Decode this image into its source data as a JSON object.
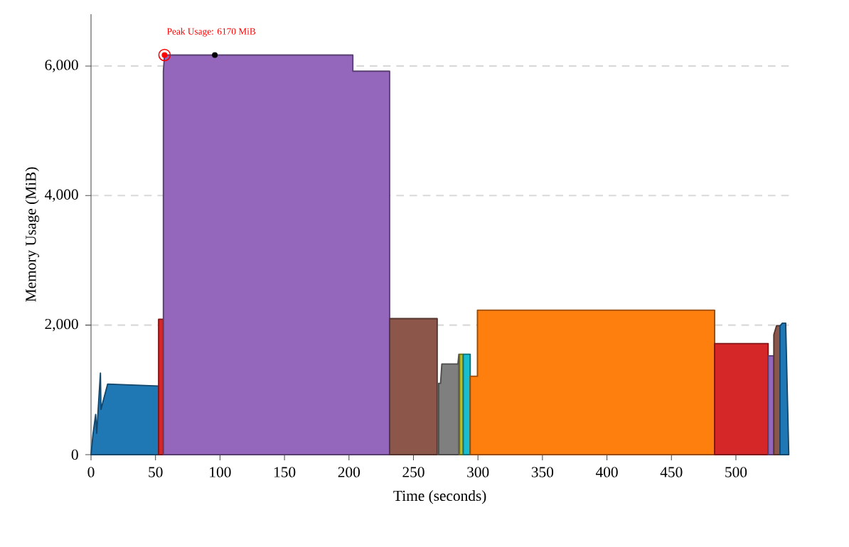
{
  "chart_data": {
    "type": "area",
    "xlabel": "Time (seconds)",
    "ylabel": "Memory Usage (MiB)",
    "xlim": [
      0,
      541
    ],
    "ylim": [
      0,
      6800
    ],
    "xticks": [
      0,
      50,
      100,
      150,
      200,
      250,
      300,
      350,
      400,
      450,
      500
    ],
    "yticks": [
      0,
      {
        "value": 2000,
        "label": "2,000"
      },
      {
        "value": 4000,
        "label": "4,000"
      },
      {
        "value": 6000,
        "label": "6,000"
      }
    ],
    "grid": "y",
    "annotations": [
      {
        "text": "Peak Usage: 6170 MiB",
        "x": 57,
        "y": 6170
      }
    ],
    "series": [
      {
        "color": "#1f77b4",
        "x": [
          0,
          1.5,
          3.6,
          4.4,
          7.3,
          7.7,
          12.9,
          52.4,
          52.4
        ],
        "values": [
          0,
          310,
          620,
          330,
          1260,
          700,
          1090,
          1060,
          0
        ]
      },
      {
        "color": "#d62728",
        "x": [
          52.4,
          52.4,
          56.1,
          56.1
        ],
        "values": [
          0,
          2090,
          2090,
          0
        ]
      },
      {
        "color": "#9467bd",
        "x": [
          56.1,
          56.1,
          57,
          203,
          203,
          231.5,
          231.5
        ],
        "values": [
          0,
          5920,
          6170,
          6170,
          5920,
          5920,
          0
        ]
      },
      {
        "color": "#8c564b",
        "x": [
          231.5,
          231.5,
          268.4,
          268.4
        ],
        "values": [
          0,
          2100,
          2100,
          0
        ]
      },
      {
        "color": "#7f7f7f",
        "x": [
          269.5,
          269.5,
          271,
          272,
          284.5,
          285.2,
          285.2
        ],
        "values": [
          0,
          1100,
          1100,
          1400,
          1400,
          1550,
          0
        ]
      },
      {
        "color": "#bcbd22",
        "x": [
          285.7,
          285.7,
          288.6,
          288.6
        ],
        "values": [
          0,
          1550,
          1550,
          0
        ]
      },
      {
        "color": "#17becf",
        "x": [
          288.6,
          288.6,
          294,
          294
        ],
        "values": [
          0,
          1550,
          1550,
          0
        ]
      },
      {
        "color": "#ff7f0e",
        "x": [
          294,
          294,
          299.6,
          299.6,
          483.5,
          483.5
        ],
        "values": [
          0,
          1210,
          1210,
          2230,
          2230,
          0
        ]
      },
      {
        "color": "#d62728",
        "x": [
          483.5,
          483.5,
          525,
          525
        ],
        "values": [
          0,
          1715,
          1715,
          0
        ]
      },
      {
        "color": "#9467bd",
        "x": [
          525,
          525,
          529.4,
          529.4
        ],
        "values": [
          0,
          1525,
          1525,
          0
        ]
      },
      {
        "color": "#8c564b",
        "x": [
          529.4,
          529.4,
          531.5,
          534.2,
          534.2
        ],
        "values": [
          0,
          1850,
          1990,
          1990,
          0
        ]
      },
      {
        "color": "#1f77b4",
        "x": [
          534.2,
          534.2,
          536,
          538.6,
          541
        ],
        "values": [
          0,
          1990,
          2030,
          2030,
          0
        ]
      },
      {
        "type": "scatter",
        "color": "#000000",
        "marker": "circle",
        "x": [
          96
        ],
        "values": [
          6170
        ]
      },
      {
        "type": "scatter",
        "color": "#ff0000",
        "marker": "circle",
        "x": [
          57
        ],
        "values": [
          6170
        ]
      }
    ]
  }
}
